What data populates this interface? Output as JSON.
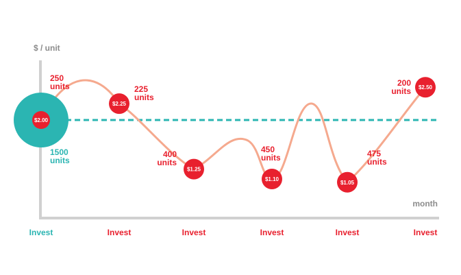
{
  "chart_data": {
    "type": "line",
    "ylabel": "$ / unit",
    "xlabel": "month",
    "categories": [
      "Invest",
      "Invest",
      "Invest",
      "Invest",
      "Invest",
      "Invest"
    ],
    "series": [
      {
        "values": [
          2.0,
          2.25,
          1.25,
          1.1,
          1.05,
          2.5
        ],
        "price_labels": [
          "$2.00",
          "$2.25",
          "$1.25",
          "$1.10",
          "$1.05",
          "$2.50"
        ],
        "units": [
          {
            "qty": "250",
            "unit": "units"
          },
          {
            "qty": "225",
            "unit": "units"
          },
          {
            "qty": "400",
            "unit": "units"
          },
          {
            "qty": "450",
            "unit": "units"
          },
          {
            "qty": "475",
            "unit": "units"
          },
          {
            "qty": "200",
            "unit": "units"
          }
        ]
      }
    ],
    "reference_line": {
      "value": 2.0,
      "qty": "1500",
      "unit": "units",
      "style": "dashed"
    },
    "ylim": [
      0.4,
      3.0
    ],
    "grid": false,
    "colors": {
      "line": "#f5a98e",
      "marker": "#e8202e",
      "reference": "#2bb5b2",
      "axis": "#d0d0d0",
      "axis_text": "#8c8c8c"
    }
  }
}
